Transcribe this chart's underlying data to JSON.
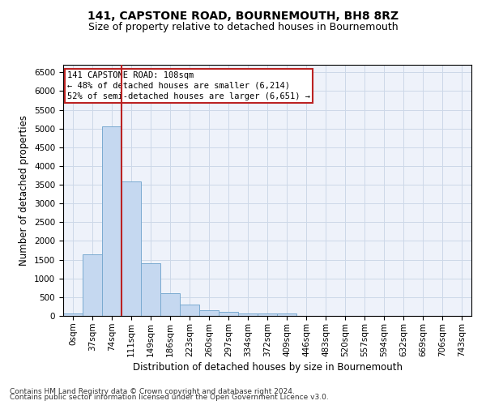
{
  "title": "141, CAPSTONE ROAD, BOURNEMOUTH, BH8 8RZ",
  "subtitle": "Size of property relative to detached houses in Bournemouth",
  "xlabel": "Distribution of detached houses by size in Bournemouth",
  "ylabel": "Number of detached properties",
  "footer_line1": "Contains HM Land Registry data © Crown copyright and database right 2024.",
  "footer_line2": "Contains public sector information licensed under the Open Government Licence v3.0.",
  "bin_labels": [
    "0sqm",
    "37sqm",
    "74sqm",
    "111sqm",
    "149sqm",
    "186sqm",
    "223sqm",
    "260sqm",
    "297sqm",
    "334sqm",
    "372sqm",
    "409sqm",
    "446sqm",
    "483sqm",
    "520sqm",
    "557sqm",
    "594sqm",
    "632sqm",
    "669sqm",
    "706sqm",
    "743sqm"
  ],
  "bar_values": [
    75,
    1650,
    5060,
    3590,
    1415,
    610,
    295,
    155,
    110,
    75,
    55,
    75,
    0,
    0,
    0,
    0,
    0,
    0,
    0,
    0,
    0
  ],
  "bar_color": "#c5d8f0",
  "bar_edge_color": "#7aaad0",
  "grid_color": "#ccd8e8",
  "vline_color": "#bb2222",
  "annotation_text": "141 CAPSTONE ROAD: 108sqm\n← 48% of detached houses are smaller (6,214)\n52% of semi-detached houses are larger (6,651) →",
  "annotation_box_color": "#ffffff",
  "annotation_box_edge": "#bb2222",
  "ylim": [
    0,
    6700
  ],
  "yticks": [
    0,
    500,
    1000,
    1500,
    2000,
    2500,
    3000,
    3500,
    4000,
    4500,
    5000,
    5500,
    6000,
    6500
  ],
  "title_fontsize": 10,
  "subtitle_fontsize": 9,
  "xlabel_fontsize": 8.5,
  "ylabel_fontsize": 8.5,
  "tick_fontsize": 7.5,
  "annotation_fontsize": 7.5,
  "footer_fontsize": 6.5
}
